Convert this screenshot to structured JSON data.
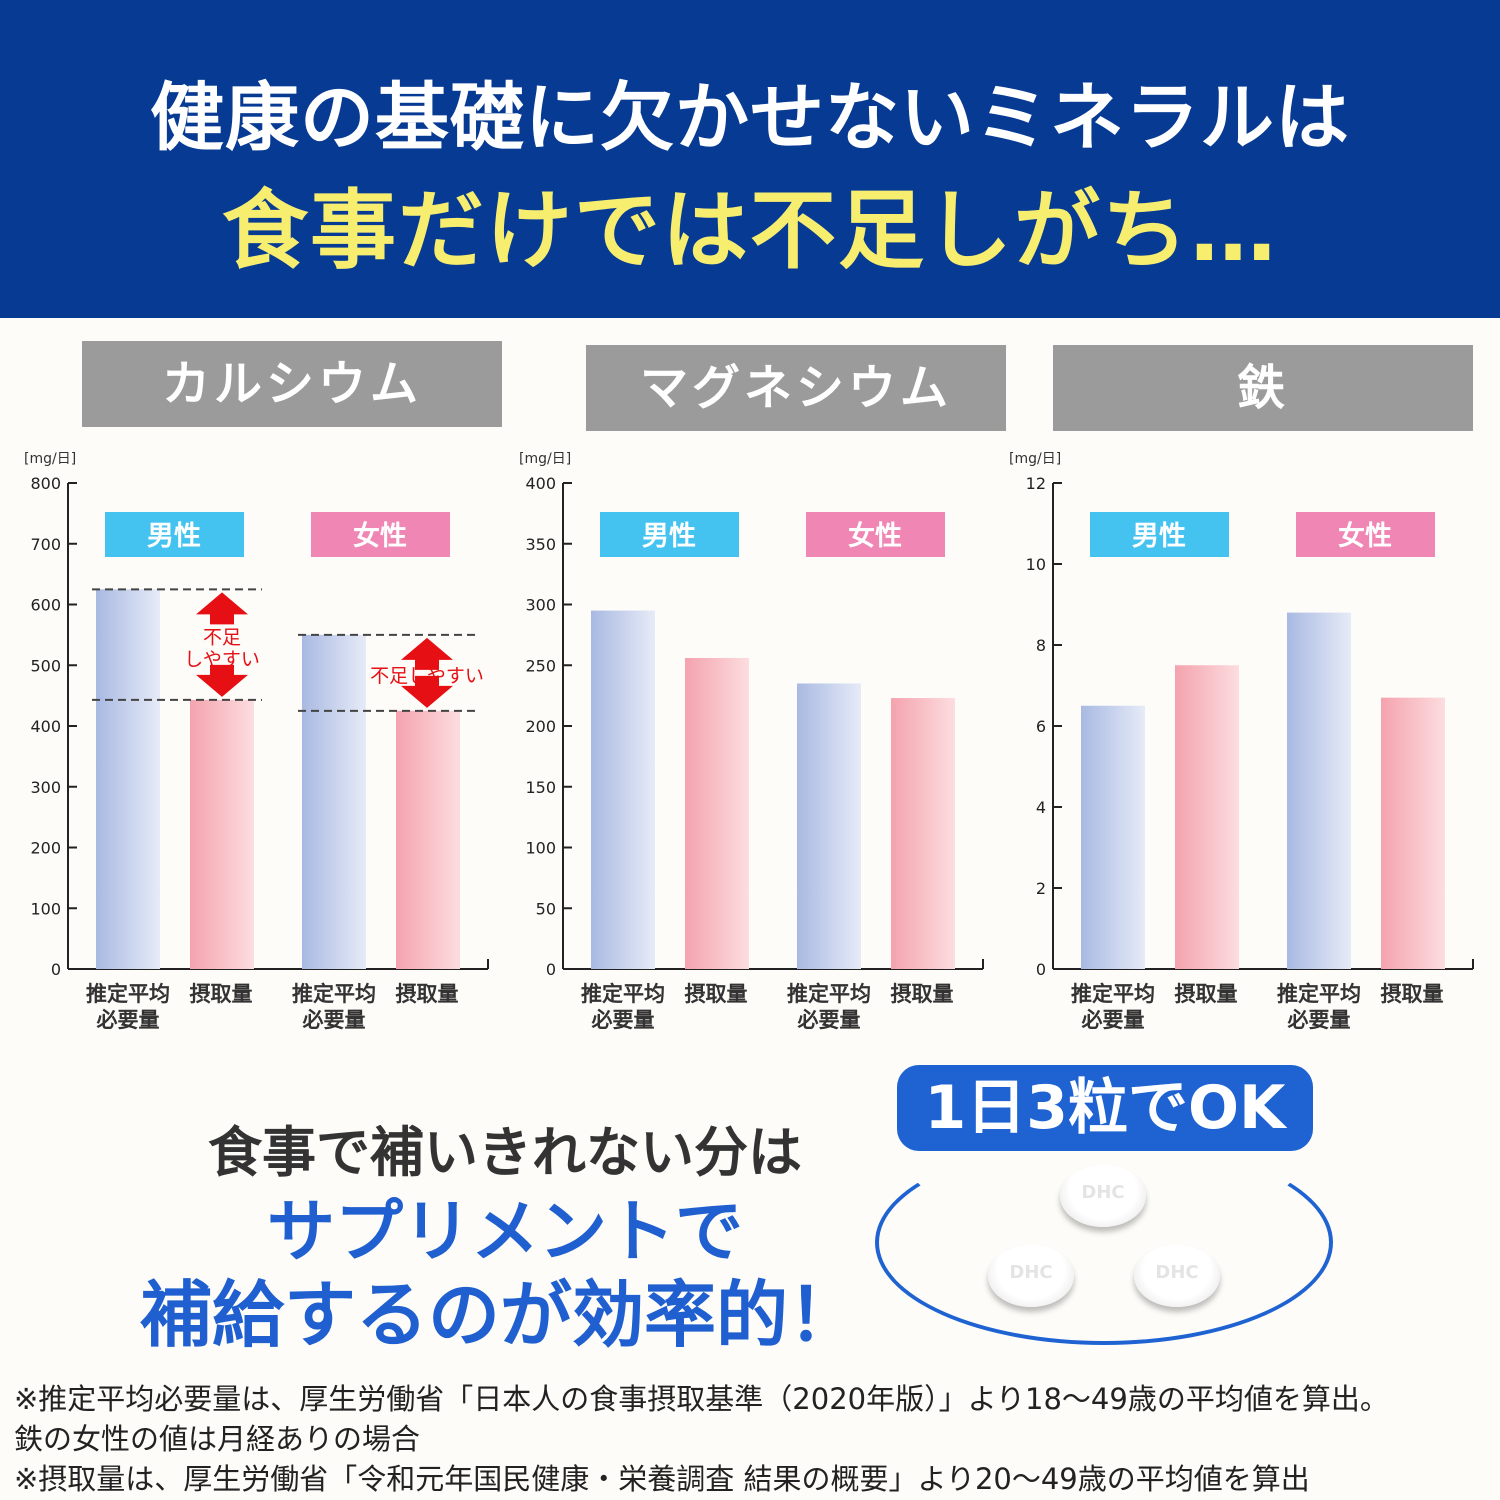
{
  "header": {
    "line1": "健康の基礎に欠かせないミネラルは",
    "line2": "食事だけでは不足しがち…"
  },
  "colors": {
    "header_bg": "#063a93",
    "headline_yellow": "#f7ee6f",
    "male": "#45c3f0",
    "female": "#ef86b3",
    "required_bar": "#b4c3e6",
    "intake_bar": "#f4a9b3",
    "accent_blue": "#1f5fcf",
    "arrow_red": "#e60f14"
  },
  "chart_data": [
    {
      "type": "bar",
      "title": "カルシウム",
      "ylabel": "[mg/日]",
      "ylim": [
        0,
        800
      ],
      "yticks": [
        0,
        100,
        200,
        300,
        400,
        500,
        600,
        700,
        800
      ],
      "groups": [
        "男性",
        "女性"
      ],
      "categories": [
        "推定平均\n必要量",
        "摂取量",
        "推定平均\n必要量",
        "摂取量"
      ],
      "values": [
        625,
        443,
        550,
        425
      ],
      "annotations": [
        "不足\nしやすい",
        "不足しやすい"
      ]
    },
    {
      "type": "bar",
      "title": "マグネシウム",
      "ylabel": "[mg/日]",
      "ylim": [
        0,
        400
      ],
      "yticks": [
        0,
        50,
        100,
        150,
        200,
        250,
        300,
        350,
        400
      ],
      "groups": [
        "男性",
        "女性"
      ],
      "categories": [
        "推定平均\n必要量",
        "摂取量",
        "推定平均\n必要量",
        "摂取量"
      ],
      "values": [
        295,
        256,
        235,
        223
      ]
    },
    {
      "type": "bar",
      "title": "鉄",
      "ylabel": "[mg/日]",
      "ylim": [
        0,
        12
      ],
      "yticks": [
        0,
        2,
        4,
        6,
        8,
        10,
        12
      ],
      "groups": [
        "男性",
        "女性"
      ],
      "categories": [
        "推定平均\n必要量",
        "摂取量",
        "推定平均\n必要量",
        "摂取量"
      ],
      "values": [
        6.5,
        7.5,
        8.8,
        6.7
      ]
    }
  ],
  "bottom": {
    "line1": "食事で補いきれない分は",
    "line2": "サプリメントで",
    "line3": "補給するのが効率的！",
    "badge": "1日3粒でOK",
    "pill_mark": "DHC"
  },
  "footnotes": [
    "※推定平均必要量は、厚生労働省「日本人の食事摂取基準（2020年版）」より18〜49歳の平均値を算出。",
    "鉄の女性の値は月経ありの場合",
    "※摂取量は、厚生労働省「令和元年国民健康・栄養調査 結果の概要」より20〜49歳の平均値を算出"
  ]
}
